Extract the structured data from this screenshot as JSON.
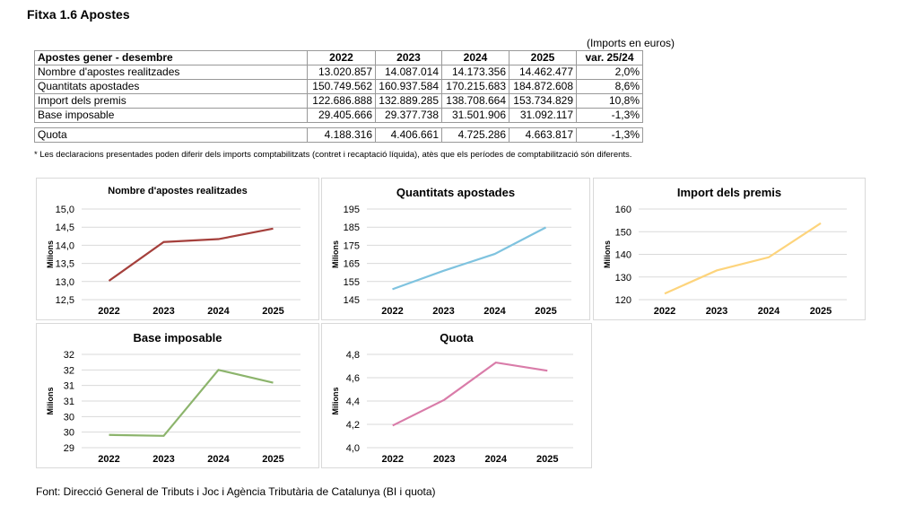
{
  "title": "Fitxa 1.6 Apostes",
  "units": "(Imports en euros)",
  "table": {
    "header": [
      "Apostes gener - desembre",
      "2022",
      "2023",
      "2024",
      "2025",
      "var. 25/24"
    ],
    "rows": [
      [
        "Nombre d'apostes realitzades",
        "13.020.857",
        "14.087.014",
        "14.173.356",
        "14.462.477",
        "2,0%"
      ],
      [
        "Quantitats apostades",
        "150.749.562",
        "160.937.584",
        "170.215.683",
        "184.872.608",
        "8,6%"
      ],
      [
        "Import dels premis",
        "122.686.888",
        "132.889.285",
        "138.708.664",
        "153.734.829",
        "10,8%"
      ],
      [
        "Base imposable",
        "29.405.666",
        "29.377.738",
        "31.501.906",
        "31.092.117",
        "-1,3%"
      ]
    ],
    "quota_row": [
      "Quota",
      "4.188.316",
      "4.406.661",
      "4.725.286",
      "4.663.817",
      "-1,3%"
    ]
  },
  "note": "* Les declaracions presentades poden diferir dels imports comptabilitzats (contret i recaptació líquida), atès que els períodes de comptabilització són diferents.",
  "source": "Font: Direcció General de Tributs i Joc i Agència Tributària de Catalunya (BI i quota)",
  "chart_data": [
    {
      "type": "line",
      "title": "Nombre d'apostes realitzades",
      "ylabel": "Milions",
      "categories": [
        "2022",
        "2023",
        "2024",
        "2025"
      ],
      "values": [
        13.02,
        14.09,
        14.17,
        14.46
      ],
      "ylim": [
        12.5,
        15.0
      ],
      "yticks": [
        "12,5",
        "13,0",
        "13,5",
        "14,0",
        "14,5",
        "15,0"
      ],
      "color": "#a5403c",
      "grid": true
    },
    {
      "type": "line",
      "title": "Quantitats apostades",
      "ylabel": "Milions",
      "categories": [
        "2022",
        "2023",
        "2024",
        "2025"
      ],
      "values": [
        150.75,
        160.94,
        170.22,
        184.87
      ],
      "ylim": [
        145,
        195
      ],
      "yticks": [
        "145",
        "155",
        "165",
        "175",
        "185",
        "195"
      ],
      "color": "#7fc3df",
      "grid": true
    },
    {
      "type": "line",
      "title": "Import dels premis",
      "ylabel": "Milions",
      "categories": [
        "2022",
        "2023",
        "2024",
        "2025"
      ],
      "values": [
        122.69,
        132.89,
        138.71,
        153.73
      ],
      "ylim": [
        120,
        160
      ],
      "yticks": [
        "120",
        "130",
        "140",
        "150",
        "160"
      ],
      "color": "#fdd47c",
      "grid": true
    },
    {
      "type": "line",
      "title": "Base imposable",
      "ylabel": "Milions",
      "categories": [
        "2022",
        "2023",
        "2024",
        "2025"
      ],
      "values": [
        29.41,
        29.38,
        31.5,
        31.09
      ],
      "ylim": [
        29,
        32
      ],
      "yticks": [
        "29",
        "30",
        "30",
        "31",
        "31",
        "32",
        "32"
      ],
      "color": "#8cb46c",
      "grid": true
    },
    {
      "type": "line",
      "title": "Quota",
      "ylabel": "Milions",
      "categories": [
        "2022",
        "2023",
        "2024",
        "2025"
      ],
      "values": [
        4.19,
        4.41,
        4.73,
        4.66
      ],
      "ylim": [
        4.0,
        4.8
      ],
      "yticks": [
        "4,0",
        "4,2",
        "4,4",
        "4,6",
        "4,8"
      ],
      "color": "#d97ca9",
      "grid": true
    }
  ]
}
